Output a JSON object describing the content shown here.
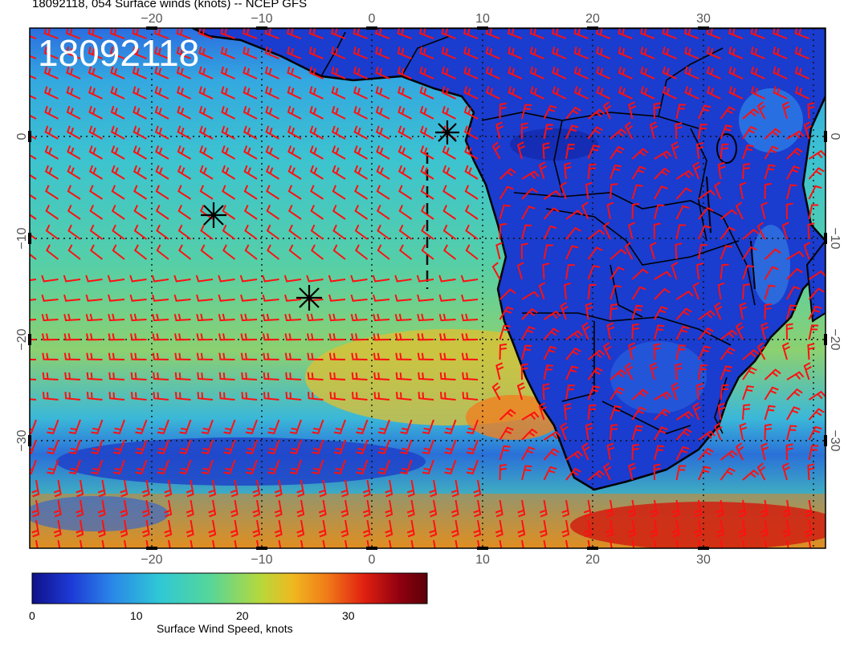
{
  "title": "18092118, 054 Surface winds (knots) -- NCEP GFS",
  "stamp": "18092118",
  "x_ticks": [
    "−20",
    "−10",
    "0",
    "10",
    "20",
    "30"
  ],
  "y_ticks": [
    "0",
    "−10",
    "−20",
    "−30"
  ],
  "colorbar": {
    "title": "Surface Wind Speed, knots",
    "ticks": [
      "0",
      "10",
      "20",
      "30"
    ],
    "colors": [
      "#10108a",
      "#1d3bd6",
      "#2a85e8",
      "#2fc7d6",
      "#55d69a",
      "#b8d83a",
      "#f0b820",
      "#f07818",
      "#e02010",
      "#900010",
      "#5a0008"
    ]
  },
  "colors": {
    "barb": "#ff1010",
    "ocean_mid": "#3fc0c8",
    "land": "#1b3fd0",
    "frame": "#000000"
  },
  "markers": [
    "storm-marker-1",
    "storm-marker-2",
    "storm-marker-3"
  ]
}
